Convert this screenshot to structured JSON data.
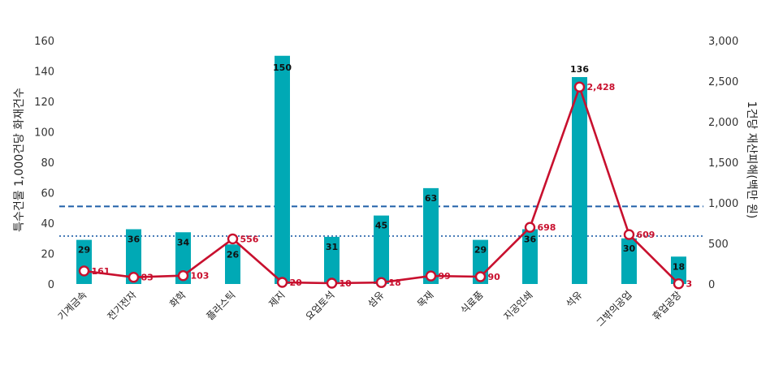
{
  "chart_data": {
    "type": "bar",
    "title": "",
    "xlabel": "",
    "ylabel": "특수건물 1,000건당 화재건수",
    "y2label": "1건당 재산피해(백만 원)",
    "categories": [
      "기계금속",
      "전기전자",
      "화학",
      "플라스틱",
      "제지",
      "요업토석",
      "섬유",
      "목재",
      "식료품",
      "지공인쇄",
      "석유",
      "그밖의공업",
      "휴업공장"
    ],
    "series": [
      {
        "type": "bar",
        "axis": "left",
        "values": [
          29,
          36,
          34,
          26,
          150,
          31,
          45,
          63,
          29,
          36,
          136,
          30,
          18
        ]
      },
      {
        "type": "line",
        "axis": "right",
        "values": [
          161,
          83,
          103,
          556,
          20,
          10,
          18,
          99,
          90,
          698,
          2428,
          609,
          3
        ]
      }
    ],
    "ylim": [
      0,
      160
    ],
    "y2lim": [
      0,
      3000
    ],
    "yticks": [
      "0",
      "20",
      "40",
      "60",
      "80",
      "100",
      "120",
      "140",
      "160"
    ],
    "y2ticks": [
      "0",
      "500",
      "1,000",
      "1,500",
      "2,000",
      "2,500",
      "3,000"
    ],
    "bar_labels": [
      "29",
      "36",
      "34",
      "26",
      "150",
      "31",
      "45",
      "63",
      "29",
      "36",
      "136",
      "30",
      "18"
    ],
    "line_labels": [
      "161",
      "83",
      "103",
      "556",
      "20",
      "10",
      "18",
      "99",
      "90",
      "698",
      "2,428",
      "609",
      "3"
    ],
    "reference_lines": [
      {
        "style": "dashed",
        "axis": "left",
        "value": 51
      },
      {
        "style": "dotted",
        "axis": "left",
        "value": 31.5
      }
    ],
    "grid": false,
    "colors": {
      "bar": "#00a9b5",
      "line": "#c8102e",
      "reference": "#1f5fa8"
    }
  }
}
